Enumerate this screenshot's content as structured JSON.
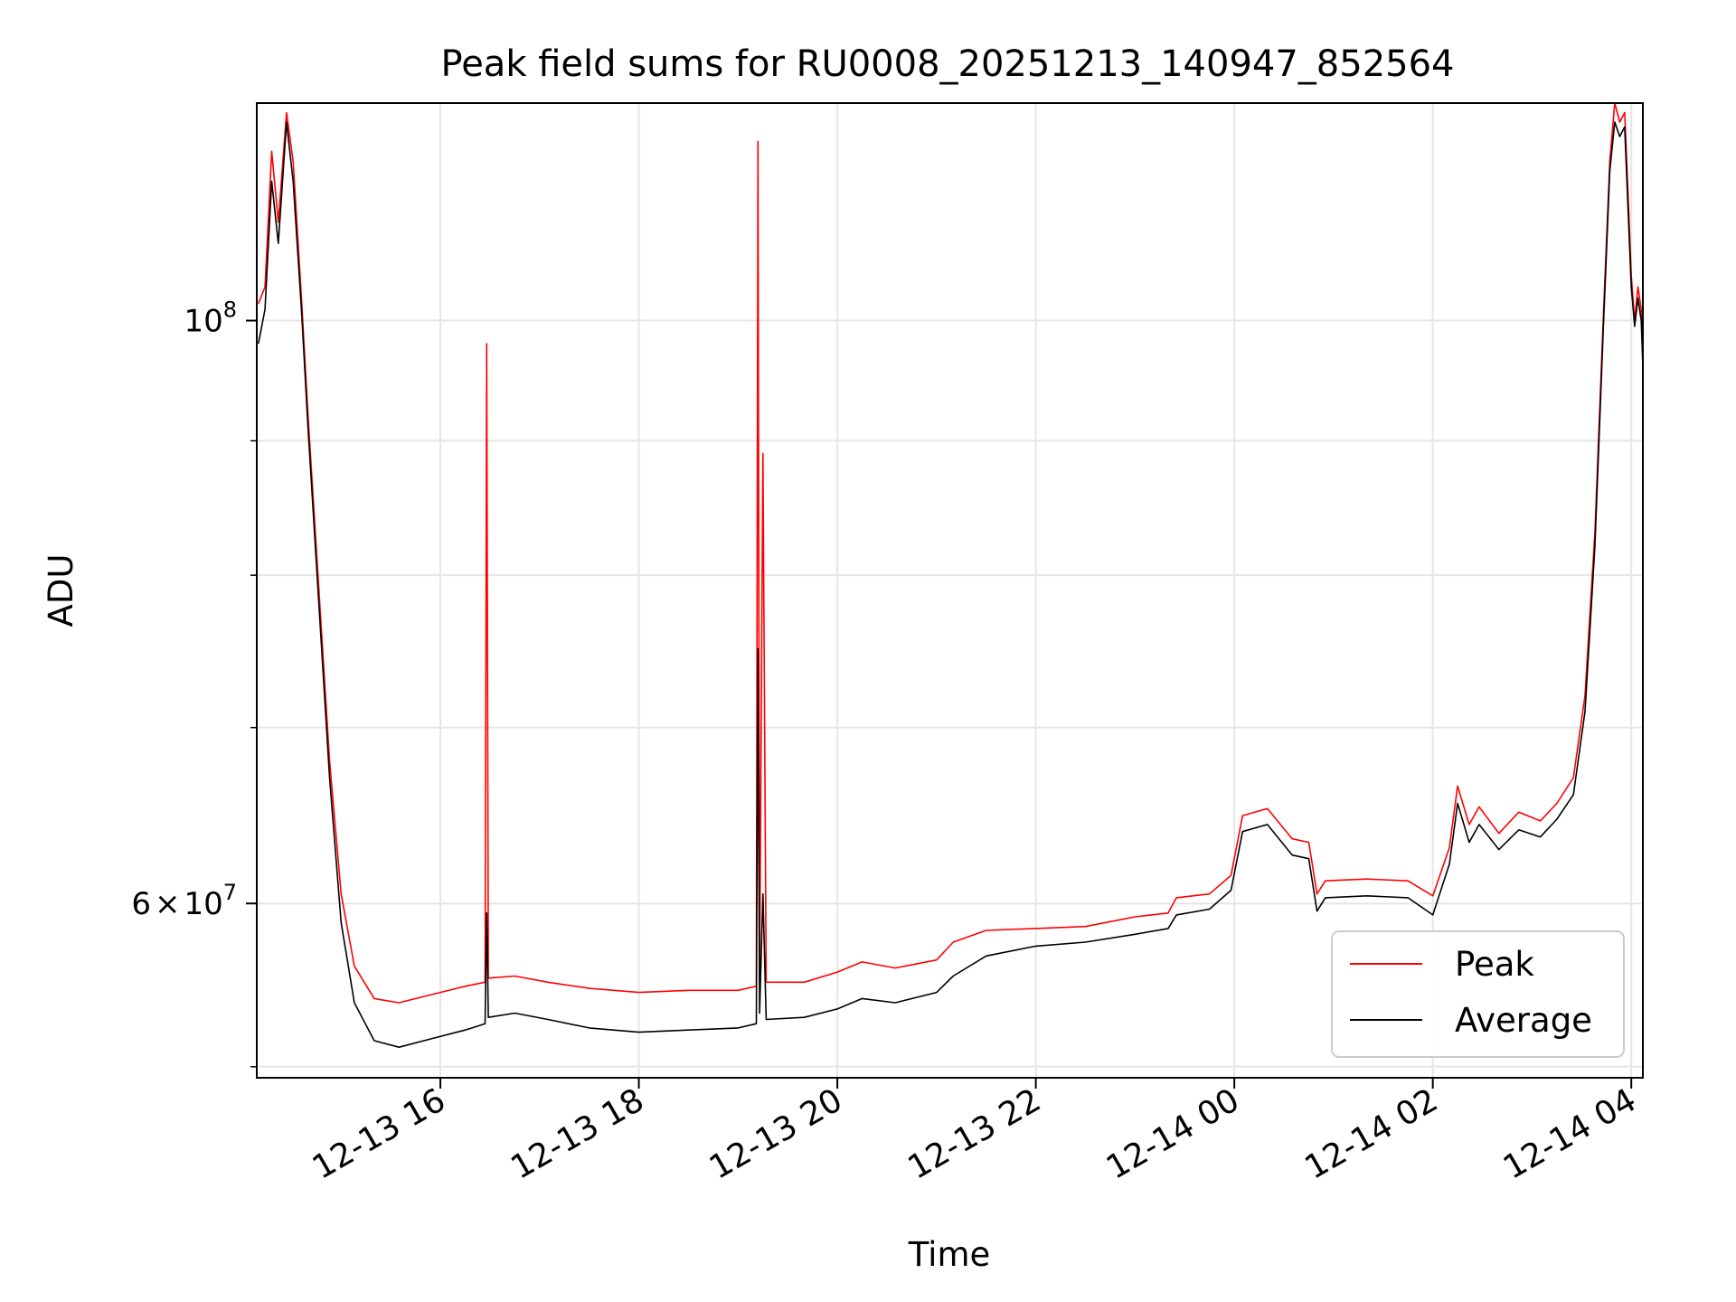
{
  "chart_data": {
    "type": "line",
    "title": "Peak field sums for RU0008_20251213_140947_852564",
    "xlabel": "Time",
    "ylabel": "ADU",
    "xlim": [
      "2025-12-13 14:09",
      "2025-12-14 04:07"
    ],
    "ylim": [
      51500000,
      121000000
    ],
    "y_scale": "log",
    "grid": true,
    "legend_position": "lower right",
    "x_ticks": [
      {
        "x": "2025-12-13 16:00",
        "label": "12-13 16"
      },
      {
        "x": "2025-12-13 18:00",
        "label": "12-13 18"
      },
      {
        "x": "2025-12-13 20:00",
        "label": "12-13 20"
      },
      {
        "x": "2025-12-13 22:00",
        "label": "12-13 22"
      },
      {
        "x": "2025-12-14 00:00",
        "label": "12-14 00"
      },
      {
        "x": "2025-12-14 02:00",
        "label": "12-14 02"
      },
      {
        "x": "2025-12-14 04:00",
        "label": "12-14 04"
      }
    ],
    "y_major_ticks": [
      {
        "value": 60000000,
        "mantissa": "6",
        "exponent": "7"
      },
      {
        "value": 100000000,
        "mantissa": "",
        "exponent": "8"
      }
    ],
    "y_minor_ticks": [
      52000000,
      70000000,
      80000000,
      90000000
    ],
    "series": [
      {
        "name": "Peak",
        "color": "#ff0000",
        "points": [
          [
            "2025-12-13 14:10",
            101500000
          ],
          [
            "2025-12-13 14:14",
            103000000
          ],
          [
            "2025-12-13 14:18",
            116000000
          ],
          [
            "2025-12-13 14:22",
            109000000
          ],
          [
            "2025-12-13 14:27",
            120000000
          ],
          [
            "2025-12-13 14:31",
            115000000
          ],
          [
            "2025-12-13 14:36",
            102000000
          ],
          [
            "2025-12-13 14:40",
            92000000
          ],
          [
            "2025-12-13 14:46",
            80000000
          ],
          [
            "2025-12-13 14:53",
            68000000
          ],
          [
            "2025-12-13 15:00",
            60500000
          ],
          [
            "2025-12-13 15:08",
            56800000
          ],
          [
            "2025-12-13 15:20",
            55200000
          ],
          [
            "2025-12-13 15:35",
            55000000
          ],
          [
            "2025-12-13 15:55",
            55400000
          ],
          [
            "2025-12-13 16:15",
            55800000
          ],
          [
            "2025-12-13 16:27",
            56000000
          ],
          [
            "2025-12-13 16:28",
            98000000
          ],
          [
            "2025-12-13 16:29",
            56200000
          ],
          [
            "2025-12-13 16:45",
            56300000
          ],
          [
            "2025-12-13 17:05",
            56000000
          ],
          [
            "2025-12-13 17:30",
            55700000
          ],
          [
            "2025-12-13 18:00",
            55500000
          ],
          [
            "2025-12-13 18:30",
            55600000
          ],
          [
            "2025-12-13 19:00",
            55600000
          ],
          [
            "2025-12-13 19:11",
            55800000
          ],
          [
            "2025-12-13 19:12",
            117000000
          ],
          [
            "2025-12-13 19:13",
            56200000
          ],
          [
            "2025-12-13 19:15",
            89000000
          ],
          [
            "2025-12-13 19:17",
            56000000
          ],
          [
            "2025-12-13 19:40",
            56000000
          ],
          [
            "2025-12-13 20:00",
            56500000
          ],
          [
            "2025-12-13 20:15",
            57000000
          ],
          [
            "2025-12-13 20:35",
            56700000
          ],
          [
            "2025-12-13 21:00",
            57100000
          ],
          [
            "2025-12-13 21:10",
            58000000
          ],
          [
            "2025-12-13 21:30",
            58600000
          ],
          [
            "2025-12-13 22:00",
            58700000
          ],
          [
            "2025-12-13 22:30",
            58800000
          ],
          [
            "2025-12-13 23:00",
            59300000
          ],
          [
            "2025-12-13 23:20",
            59500000
          ],
          [
            "2025-12-13 23:25",
            60300000
          ],
          [
            "2025-12-13 23:45",
            60500000
          ],
          [
            "2025-12-13 23:58",
            61500000
          ],
          [
            "2025-12-14 00:05",
            64800000
          ],
          [
            "2025-12-14 00:20",
            65200000
          ],
          [
            "2025-12-14 00:35",
            63500000
          ],
          [
            "2025-12-14 00:45",
            63300000
          ],
          [
            "2025-12-14 00:50",
            60500000
          ],
          [
            "2025-12-14 00:55",
            61200000
          ],
          [
            "2025-12-14 01:20",
            61300000
          ],
          [
            "2025-12-14 01:45",
            61200000
          ],
          [
            "2025-12-14 02:00",
            60400000
          ],
          [
            "2025-12-14 02:10",
            63000000
          ],
          [
            "2025-12-14 02:15",
            66500000
          ],
          [
            "2025-12-14 02:22",
            64300000
          ],
          [
            "2025-12-14 02:28",
            65300000
          ],
          [
            "2025-12-14 02:40",
            63800000
          ],
          [
            "2025-12-14 02:52",
            65000000
          ],
          [
            "2025-12-14 03:05",
            64500000
          ],
          [
            "2025-12-14 03:15",
            65500000
          ],
          [
            "2025-12-14 03:25",
            67000000
          ],
          [
            "2025-12-14 03:32",
            72000000
          ],
          [
            "2025-12-14 03:38",
            83000000
          ],
          [
            "2025-12-14 03:43",
            100000000
          ],
          [
            "2025-12-14 03:47",
            115000000
          ],
          [
            "2025-12-14 03:50",
            121000000
          ],
          [
            "2025-12-14 03:53",
            119000000
          ],
          [
            "2025-12-14 03:56",
            120000000
          ],
          [
            "2025-12-14 03:58",
            112000000
          ],
          [
            "2025-12-14 04:00",
            104000000
          ],
          [
            "2025-12-14 04:02",
            100000000
          ],
          [
            "2025-12-14 04:04",
            103000000
          ],
          [
            "2025-12-14 04:06",
            101000000
          ],
          [
            "2025-12-14 04:07",
            97000000
          ]
        ]
      },
      {
        "name": "Average",
        "color": "#000000",
        "points": [
          [
            "2025-12-13 14:10",
            98000000
          ],
          [
            "2025-12-13 14:14",
            101000000
          ],
          [
            "2025-12-13 14:18",
            113000000
          ],
          [
            "2025-12-13 14:22",
            107000000
          ],
          [
            "2025-12-13 14:27",
            119000000
          ],
          [
            "2025-12-13 14:31",
            113000000
          ],
          [
            "2025-12-13 14:36",
            101000000
          ],
          [
            "2025-12-13 14:40",
            91000000
          ],
          [
            "2025-12-13 14:46",
            79000000
          ],
          [
            "2025-12-13 14:53",
            67000000
          ],
          [
            "2025-12-13 15:00",
            59000000
          ],
          [
            "2025-12-13 15:08",
            55000000
          ],
          [
            "2025-12-13 15:20",
            53200000
          ],
          [
            "2025-12-13 15:35",
            52900000
          ],
          [
            "2025-12-13 15:55",
            53300000
          ],
          [
            "2025-12-13 16:15",
            53700000
          ],
          [
            "2025-12-13 16:27",
            54000000
          ],
          [
            "2025-12-13 16:28",
            59500000
          ],
          [
            "2025-12-13 16:29",
            54300000
          ],
          [
            "2025-12-13 16:45",
            54500000
          ],
          [
            "2025-12-13 17:05",
            54200000
          ],
          [
            "2025-12-13 17:30",
            53800000
          ],
          [
            "2025-12-13 18:00",
            53600000
          ],
          [
            "2025-12-13 18:30",
            53700000
          ],
          [
            "2025-12-13 19:00",
            53800000
          ],
          [
            "2025-12-13 19:11",
            54000000
          ],
          [
            "2025-12-13 19:12",
            75000000
          ],
          [
            "2025-12-13 19:13",
            54500000
          ],
          [
            "2025-12-13 19:15",
            60500000
          ],
          [
            "2025-12-13 19:17",
            54200000
          ],
          [
            "2025-12-13 19:40",
            54300000
          ],
          [
            "2025-12-13 20:00",
            54700000
          ],
          [
            "2025-12-13 20:15",
            55200000
          ],
          [
            "2025-12-13 20:35",
            55000000
          ],
          [
            "2025-12-13 21:00",
            55500000
          ],
          [
            "2025-12-13 21:10",
            56300000
          ],
          [
            "2025-12-13 21:30",
            57300000
          ],
          [
            "2025-12-13 22:00",
            57800000
          ],
          [
            "2025-12-13 22:30",
            58000000
          ],
          [
            "2025-12-13 23:00",
            58400000
          ],
          [
            "2025-12-13 23:20",
            58700000
          ],
          [
            "2025-12-13 23:25",
            59400000
          ],
          [
            "2025-12-13 23:45",
            59700000
          ],
          [
            "2025-12-13 23:58",
            60700000
          ],
          [
            "2025-12-14 00:05",
            63900000
          ],
          [
            "2025-12-14 00:20",
            64300000
          ],
          [
            "2025-12-14 00:35",
            62600000
          ],
          [
            "2025-12-14 00:45",
            62400000
          ],
          [
            "2025-12-14 00:50",
            59600000
          ],
          [
            "2025-12-14 00:55",
            60300000
          ],
          [
            "2025-12-14 01:20",
            60400000
          ],
          [
            "2025-12-14 01:45",
            60300000
          ],
          [
            "2025-12-14 02:00",
            59400000
          ],
          [
            "2025-12-14 02:10",
            62100000
          ],
          [
            "2025-12-14 02:15",
            65500000
          ],
          [
            "2025-12-14 02:22",
            63300000
          ],
          [
            "2025-12-14 02:28",
            64300000
          ],
          [
            "2025-12-14 02:40",
            62900000
          ],
          [
            "2025-12-14 02:52",
            64000000
          ],
          [
            "2025-12-14 03:05",
            63600000
          ],
          [
            "2025-12-14 03:15",
            64600000
          ],
          [
            "2025-12-14 03:25",
            66000000
          ],
          [
            "2025-12-14 03:32",
            71000000
          ],
          [
            "2025-12-14 03:38",
            82000000
          ],
          [
            "2025-12-14 03:43",
            99000000
          ],
          [
            "2025-12-14 03:47",
            114000000
          ],
          [
            "2025-12-14 03:50",
            119000000
          ],
          [
            "2025-12-14 03:53",
            117500000
          ],
          [
            "2025-12-14 03:56",
            118500000
          ],
          [
            "2025-12-14 03:58",
            110500000
          ],
          [
            "2025-12-14 04:00",
            103000000
          ],
          [
            "2025-12-14 04:02",
            99500000
          ],
          [
            "2025-12-14 04:04",
            102000000
          ],
          [
            "2025-12-14 04:06",
            100000000
          ],
          [
            "2025-12-14 04:07",
            96000000
          ]
        ]
      }
    ]
  }
}
